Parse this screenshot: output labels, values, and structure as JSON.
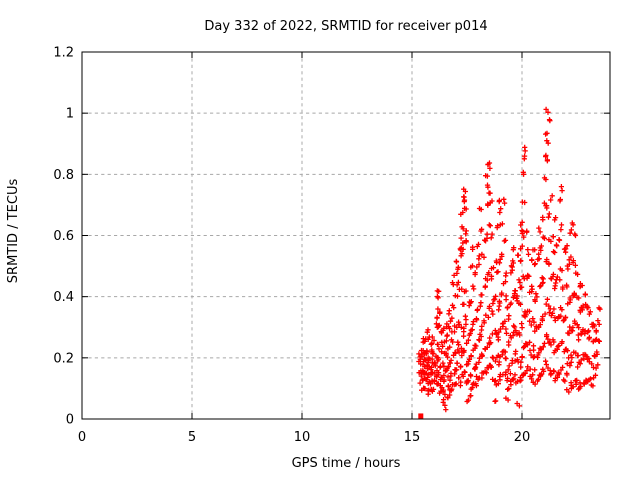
{
  "chart_data": {
    "type": "scatter",
    "title": "Day 332 of 2022, SRMTID for receiver p014",
    "xlabel": "GPS time / hours",
    "ylabel": "SRMTID / TECUs",
    "xlim": [
      0,
      24
    ],
    "ylim": [
      0,
      1.2
    ],
    "grid": "on",
    "legend": "none",
    "axes": {
      "x_ticks": [
        0,
        5,
        10,
        15,
        20
      ],
      "x_tick_labels": [
        "0",
        "5",
        "10",
        "15",
        "20"
      ],
      "y_ticks": [
        0,
        0.2,
        0.4,
        0.6,
        0.8,
        1.0,
        1.2
      ],
      "y_tick_labels": [
        "0",
        "0.2",
        "0.4",
        "0.6",
        "0.8",
        "1",
        "1.2"
      ]
    },
    "marker": {
      "shape": "plus",
      "color": "#ff0000"
    },
    "grid_color": "#a8a8a8",
    "zero_outlier": {
      "x": 15.4,
      "y": 0.01,
      "shape": "filled-square"
    },
    "series": [
      {
        "name": "SRMTID",
        "columns": [
          {
            "x": 15.4,
            "ys": [
              0.12,
              0.14,
              0.16,
              0.18,
              0.2,
              0.22
            ]
          },
          {
            "x": 15.5,
            "ys": [
              0.1,
              0.13,
              0.155,
              0.18,
              0.2,
              0.22,
              0.25
            ]
          },
          {
            "x": 15.6,
            "ys": [
              0.1,
              0.125,
              0.15,
              0.17,
              0.19,
              0.21,
              0.26
            ]
          },
          {
            "x": 15.7,
            "ys": [
              0.09,
              0.12,
              0.145,
              0.17,
              0.195,
              0.22,
              0.29
            ]
          },
          {
            "x": 15.8,
            "ys": [
              0.095,
              0.12,
              0.15,
              0.17,
              0.2,
              0.27
            ]
          },
          {
            "x": 15.9,
            "ys": [
              0.1,
              0.13,
              0.16,
              0.19,
              0.22,
              0.24
            ]
          },
          {
            "x": 16.0,
            "ys": [
              0.1,
              0.13,
              0.155,
              0.18,
              0.21,
              0.26
            ]
          },
          {
            "x": 16.1,
            "ys": [
              0.11,
              0.14,
              0.17,
              0.21,
              0.3,
              0.33
            ]
          },
          {
            "x": 16.2,
            "ys": [
              0.12,
              0.15,
              0.19,
              0.25,
              0.31,
              0.36,
              0.4,
              0.42
            ]
          },
          {
            "x": 16.3,
            "ys": [
              0.09,
              0.13,
              0.17,
              0.22,
              0.28,
              0.35
            ]
          },
          {
            "x": 16.4,
            "ys": [
              0.06,
              0.1,
              0.14,
              0.18,
              0.24,
              0.29
            ]
          },
          {
            "x": 16.5,
            "ys": [
              0.04,
              0.08,
              0.12,
              0.16,
              0.21,
              0.25
            ]
          },
          {
            "x": 16.6,
            "ys": [
              0.07,
              0.11,
              0.16,
              0.21,
              0.28,
              0.31
            ]
          },
          {
            "x": 16.7,
            "ys": [
              0.09,
              0.13,
              0.18,
              0.24,
              0.3,
              0.35
            ]
          },
          {
            "x": 16.8,
            "ys": [
              0.1,
              0.14,
              0.19,
              0.25,
              0.33
            ]
          },
          {
            "x": 16.9,
            "ys": [
              0.11,
              0.15,
              0.21,
              0.28,
              0.36,
              0.44
            ]
          },
          {
            "x": 17.0,
            "ys": [
              0.12,
              0.16,
              0.22,
              0.3,
              0.4,
              0.48,
              0.52
            ]
          },
          {
            "x": 17.1,
            "ys": [
              0.13,
              0.18,
              0.24,
              0.31,
              0.45,
              0.5
            ]
          },
          {
            "x": 17.2,
            "ys": [
              0.12,
              0.17,
              0.23,
              0.3,
              0.42,
              0.53,
              0.56
            ]
          },
          {
            "x": 17.3,
            "ys": [
              0.15,
              0.21,
              0.28,
              0.38,
              0.55,
              0.58,
              0.62,
              0.67
            ]
          },
          {
            "x": 17.4,
            "ys": [
              0.16,
              0.22,
              0.3,
              0.42,
              0.61,
              0.69,
              0.71,
              0.73,
              0.75
            ]
          },
          {
            "x": 17.5,
            "ys": [
              0.06,
              0.12,
              0.18,
              0.25,
              0.33,
              0.58
            ]
          },
          {
            "x": 17.6,
            "ys": [
              0.08,
              0.13,
              0.19,
              0.27,
              0.37
            ]
          },
          {
            "x": 17.7,
            "ys": [
              0.1,
              0.15,
              0.21,
              0.29,
              0.39,
              0.5
            ]
          },
          {
            "x": 17.8,
            "ys": [
              0.11,
              0.16,
              0.23,
              0.31,
              0.43,
              0.55
            ]
          },
          {
            "x": 17.9,
            "ys": [
              0.12,
              0.17,
              0.24,
              0.33,
              0.47
            ]
          },
          {
            "x": 18.0,
            "ys": [
              0.13,
              0.18,
              0.26,
              0.36,
              0.5,
              0.57
            ]
          },
          {
            "x": 18.1,
            "ys": [
              0.14,
              0.2,
              0.28,
              0.38,
              0.53,
              0.62,
              0.68
            ]
          },
          {
            "x": 18.2,
            "ys": [
              0.15,
              0.21,
              0.3,
              0.4,
              0.54
            ]
          },
          {
            "x": 18.3,
            "ys": [
              0.16,
              0.23,
              0.32,
              0.43,
              0.58
            ]
          },
          {
            "x": 18.4,
            "ys": [
              0.17,
              0.24,
              0.34,
              0.46,
              0.6,
              0.7,
              0.76,
              0.79
            ]
          },
          {
            "x": 18.5,
            "ys": [
              0.18,
              0.26,
              0.36,
              0.48,
              0.63,
              0.74,
              0.82,
              0.84
            ]
          },
          {
            "x": 18.6,
            "ys": [
              0.17,
              0.25,
              0.35,
              0.46,
              0.6,
              0.71
            ]
          },
          {
            "x": 18.7,
            "ys": [
              0.13,
              0.2,
              0.28,
              0.38,
              0.5
            ]
          },
          {
            "x": 18.8,
            "ys": [
              0.06,
              0.12,
              0.19,
              0.28,
              0.39,
              0.52
            ]
          },
          {
            "x": 18.9,
            "ys": [
              0.12,
              0.18,
              0.26,
              0.36,
              0.48,
              0.63
            ]
          },
          {
            "x": 19.0,
            "ys": [
              0.13,
              0.2,
              0.29,
              0.39,
              0.52,
              0.68,
              0.72
            ]
          },
          {
            "x": 19.1,
            "ys": [
              0.14,
              0.21,
              0.3,
              0.41,
              0.54,
              0.64
            ]
          },
          {
            "x": 19.2,
            "ys": [
              0.15,
              0.22,
              0.32,
              0.44,
              0.58,
              0.71
            ]
          },
          {
            "x": 19.3,
            "ys": [
              0.07,
              0.13,
              0.2,
              0.29,
              0.4,
              0.47
            ]
          },
          {
            "x": 19.4,
            "ys": [
              0.1,
              0.16,
              0.24,
              0.33,
              0.36
            ]
          },
          {
            "x": 19.5,
            "ys": [
              0.12,
              0.18,
              0.27,
              0.37,
              0.48,
              0.5
            ]
          },
          {
            "x": 19.6,
            "ys": [
              0.13,
              0.19,
              0.28,
              0.4,
              0.52,
              0.55
            ]
          },
          {
            "x": 19.7,
            "ys": [
              0.14,
              0.21,
              0.3,
              0.41,
              0.42
            ]
          },
          {
            "x": 19.8,
            "ys": [
              0.05,
              0.12,
              0.19,
              0.28,
              0.39,
              0.53
            ]
          },
          {
            "x": 19.9,
            "ys": [
              0.12,
              0.18,
              0.27,
              0.38,
              0.45,
              0.52
            ]
          },
          {
            "x": 20.0,
            "ys": [
              0.14,
              0.21,
              0.31,
              0.43,
              0.56,
              0.61,
              0.64
            ]
          },
          {
            "x": 20.1,
            "ys": [
              0.15,
              0.23,
              0.34,
              0.46,
              0.6,
              0.71,
              0.8,
              0.85,
              0.88
            ]
          },
          {
            "x": 20.2,
            "ys": [
              0.16,
              0.24,
              0.34,
              0.46,
              0.62
            ]
          },
          {
            "x": 20.3,
            "ys": [
              0.17,
              0.25,
              0.35,
              0.47,
              0.55
            ]
          },
          {
            "x": 20.4,
            "ys": [
              0.14,
              0.22,
              0.31,
              0.42,
              0.52
            ]
          },
          {
            "x": 20.5,
            "ys": [
              0.15,
              0.23,
              0.32,
              0.43,
              0.55
            ]
          },
          {
            "x": 20.6,
            "ys": [
              0.12,
              0.2,
              0.29,
              0.39,
              0.5
            ]
          },
          {
            "x": 20.7,
            "ys": [
              0.13,
              0.21,
              0.3,
              0.4,
              0.52
            ]
          },
          {
            "x": 20.8,
            "ys": [
              0.14,
              0.22,
              0.31,
              0.43,
              0.54,
              0.62
            ]
          },
          {
            "x": 20.9,
            "ys": [
              0.15,
              0.23,
              0.33,
              0.45,
              0.57,
              0.66
            ]
          },
          {
            "x": 21.0,
            "ys": [
              0.16,
              0.24,
              0.34,
              0.46,
              0.59,
              0.7
            ]
          },
          {
            "x": 21.1,
            "ys": [
              0.18,
              0.27,
              0.38,
              0.52,
              0.69,
              0.78,
              0.86,
              0.93,
              1.01
            ]
          },
          {
            "x": 21.2,
            "ys": [
              0.17,
              0.26,
              0.37,
              0.5,
              0.66,
              0.84,
              0.9,
              0.98
            ]
          },
          {
            "x": 21.3,
            "ys": [
              0.15,
              0.24,
              0.34,
              0.46,
              0.58,
              0.72
            ]
          },
          {
            "x": 21.4,
            "ys": [
              0.16,
              0.25,
              0.35,
              0.47,
              0.6
            ]
          },
          {
            "x": 21.5,
            "ys": [
              0.13,
              0.22,
              0.32,
              0.43,
              0.55,
              0.66
            ]
          },
          {
            "x": 21.6,
            "ys": [
              0.14,
              0.23,
              0.33,
              0.45,
              0.57
            ]
          },
          {
            "x": 21.7,
            "ys": [
              0.15,
              0.24,
              0.34,
              0.46,
              0.58,
              0.72
            ]
          },
          {
            "x": 21.8,
            "ys": [
              0.16,
              0.25,
              0.36,
              0.48,
              0.63,
              0.75
            ]
          },
          {
            "x": 21.9,
            "ys": [
              0.13,
              0.22,
              0.32,
              0.43,
              0.55
            ]
          },
          {
            "x": 22.0,
            "ys": [
              0.14,
              0.23,
              0.33,
              0.44,
              0.56
            ]
          },
          {
            "x": 22.1,
            "ys": [
              0.09,
              0.18,
              0.28,
              0.38,
              0.5
            ]
          },
          {
            "x": 22.2,
            "ys": [
              0.1,
              0.19,
              0.29,
              0.39,
              0.51,
              0.61
            ]
          },
          {
            "x": 22.3,
            "ys": [
              0.11,
              0.2,
              0.3,
              0.4,
              0.52,
              0.64
            ]
          },
          {
            "x": 22.4,
            "ys": [
              0.12,
              0.21,
              0.31,
              0.41,
              0.5,
              0.6
            ]
          },
          {
            "x": 22.5,
            "ys": [
              0.13,
              0.21,
              0.31,
              0.4,
              0.47
            ]
          },
          {
            "x": 22.6,
            "ys": [
              0.1,
              0.18,
              0.27,
              0.36,
              0.43
            ]
          },
          {
            "x": 22.7,
            "ys": [
              0.11,
              0.19,
              0.28,
              0.37,
              0.44
            ]
          },
          {
            "x": 22.8,
            "ys": [
              0.12,
              0.2,
              0.29,
              0.36
            ]
          },
          {
            "x": 22.9,
            "ys": [
              0.13,
              0.21,
              0.29,
              0.38,
              0.41
            ]
          },
          {
            "x": 23.0,
            "ys": [
              0.12,
              0.2,
              0.28,
              0.36
            ]
          },
          {
            "x": 23.1,
            "ys": [
              0.13,
              0.19,
              0.27,
              0.34
            ]
          },
          {
            "x": 23.2,
            "ys": [
              0.11,
              0.17,
              0.25,
              0.31
            ]
          },
          {
            "x": 23.3,
            "ys": [
              0.14,
              0.2,
              0.26,
              0.3
            ]
          },
          {
            "x": 23.4,
            "ys": [
              0.17,
              0.22,
              0.28
            ]
          },
          {
            "x": 23.5,
            "ys": [
              0.25,
              0.31,
              0.36
            ]
          }
        ]
      }
    ]
  }
}
